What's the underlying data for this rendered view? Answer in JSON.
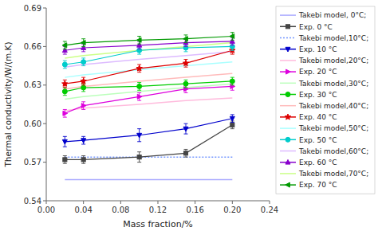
{
  "chart_data": {
    "type": "line",
    "xlabel": "Mass fraction/%",
    "ylabel": "Thermal conductivity/W/(m.K)",
    "x": [
      0.02,
      0.04,
      0.1,
      0.15,
      0.2
    ],
    "xlim": [
      0.0,
      0.24
    ],
    "ylim": [
      0.54,
      0.69
    ],
    "xticks": [
      {
        "value": 0.0,
        "label": "0.00"
      },
      0.04,
      0.08,
      0.12,
      0.16,
      {
        "value": 0.2,
        "label": "0.20"
      },
      0.24
    ],
    "yticks": [
      0.54,
      0.57,
      {
        "value": 0.6,
        "label": "0.60"
      },
      0.63,
      0.66,
      0.69
    ],
    "grid": false,
    "legend": "right",
    "series": [
      {
        "name": "Takebi model, 0°C;",
        "color": "#aaaaff",
        "line_style": "solid",
        "values": [
          0.5565,
          0.5565,
          0.5565,
          0.5565,
          0.5565
        ]
      },
      {
        "name": "Exp. 0 °C",
        "color": "#444444",
        "line_style": "solid",
        "marker": "square",
        "values": [
          0.572,
          0.572,
          0.574,
          0.577,
          0.599
        ],
        "errors": [
          0.003,
          0.003,
          0.004,
          0.003,
          0.003
        ]
      },
      {
        "name": "Takebi model,10°C;",
        "color": "#7799ff",
        "line_style": "dotted",
        "values": [
          0.574,
          0.574,
          0.574,
          0.574,
          0.574
        ]
      },
      {
        "name": "Exp. 10 °C",
        "color": "#0000cc",
        "line_style": "solid",
        "marker": "triangle-down",
        "values": [
          0.586,
          0.587,
          0.591,
          0.596,
          0.604
        ],
        "errors": [
          0.004,
          0.003,
          0.005,
          0.004,
          0.003
        ]
      },
      {
        "name": "Takebi model,20°C;",
        "color": "#ffbbdd",
        "line_style": "solid",
        "values": [
          0.61,
          0.612,
          0.615,
          0.618,
          0.62
        ]
      },
      {
        "name": "Exp. 20 °C",
        "color": "#dd00dd",
        "line_style": "solid",
        "marker": "triangle-right",
        "values": [
          0.608,
          0.614,
          0.621,
          0.627,
          0.629
        ],
        "errors": [
          0.003,
          0.003,
          0.003,
          0.003,
          0.003
        ]
      },
      {
        "name": "Takebi model,30°C;",
        "color": "#bbffbb",
        "line_style": "solid",
        "values": [
          0.619,
          0.621,
          0.625,
          0.628,
          0.631
        ]
      },
      {
        "name": "Exp. 30 °C",
        "color": "#00cc00",
        "line_style": "solid",
        "marker": "circle",
        "values": [
          0.625,
          0.628,
          0.629,
          0.631,
          0.633
        ],
        "errors": [
          0.003,
          0.003,
          0.003,
          0.003,
          0.003
        ]
      },
      {
        "name": "Takebi model,40°C;",
        "color": "#ffbbbb",
        "line_style": "solid",
        "values": [
          0.627,
          0.629,
          0.633,
          0.636,
          0.639
        ]
      },
      {
        "name": "Exp. 40 °C",
        "color": "#dd0000",
        "line_style": "solid",
        "marker": "star",
        "values": [
          0.631,
          0.633,
          0.643,
          0.647,
          0.657
        ],
        "errors": [
          0.003,
          0.003,
          0.003,
          0.003,
          0.003
        ]
      },
      {
        "name": "Takebi model,50°C;",
        "color": "#aaffff",
        "line_style": "solid",
        "values": [
          0.636,
          0.638,
          0.642,
          0.645,
          0.648
        ]
      },
      {
        "name": "Exp. 50 °C",
        "color": "#00cccc",
        "line_style": "solid",
        "marker": "circle",
        "values": [
          0.646,
          0.648,
          0.657,
          0.659,
          0.66
        ],
        "errors": [
          0.003,
          0.003,
          0.003,
          0.003,
          0.003
        ]
      },
      {
        "name": "Takebi model,60°C;",
        "color": "#ddbbff",
        "line_style": "solid",
        "values": [
          0.644,
          0.646,
          0.65,
          0.653,
          0.656
        ]
      },
      {
        "name": "Exp. 60 °C",
        "color": "#8800cc",
        "line_style": "solid",
        "marker": "triangle-up",
        "values": [
          0.657,
          0.659,
          0.661,
          0.663,
          0.664
        ],
        "errors": [
          0.003,
          0.003,
          0.003,
          0.003,
          0.003
        ]
      },
      {
        "name": "Takebi model,70°C;",
        "color": "#ccff88",
        "line_style": "solid",
        "values": [
          0.651,
          0.653,
          0.657,
          0.66,
          0.663
        ]
      },
      {
        "name": "Exp. 70 °C",
        "color": "#009900",
        "line_style": "solid",
        "marker": "triangle-left",
        "values": [
          0.661,
          0.663,
          0.665,
          0.666,
          0.668
        ],
        "errors": [
          0.003,
          0.003,
          0.003,
          0.003,
          0.003
        ]
      }
    ]
  }
}
